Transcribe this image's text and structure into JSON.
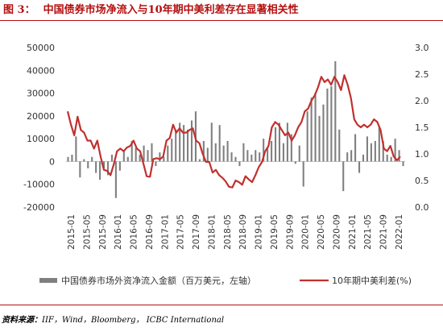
{
  "header": {
    "figure_label": "图 3：",
    "title": "中国债券市场净流入与10年期中美利差存在显著相关性"
  },
  "footer": {
    "source_label": "资料来源：",
    "source_text": "IIF，Wind，Bloomberg，  ICBC International"
  },
  "colors": {
    "title": "#b40f0f",
    "bars": "#7f7f7f",
    "line": "#c0312f",
    "axis": "#bfbfbf"
  },
  "chart_data": {
    "type": "bar+line",
    "title": "",
    "y_left": {
      "min": -20000,
      "max": 50000,
      "ticks": [
        -20000,
        -10000,
        0,
        10000,
        20000,
        30000,
        40000,
        50000
      ]
    },
    "y_right": {
      "min": 0.0,
      "max": 3.0,
      "ticks": [
        "0.0",
        "0.5",
        "1.0",
        "1.5",
        "2.0",
        "2.5",
        "3.0"
      ]
    },
    "x_labels": [
      "2015-01",
      "2015-05",
      "2015-09",
      "2016-01",
      "2016-05",
      "2016-09",
      "2017-01",
      "2017-05",
      "2017-09",
      "2018-01",
      "2018-05",
      "2018-09",
      "2019-01",
      "2019-05",
      "2019-09",
      "2020-01",
      "2020-05",
      "2020-09",
      "2021-01",
      "2021-05",
      "2021-09",
      "2022-01"
    ],
    "series": [
      {
        "name": "中国债券市场外资净流入金额（百万美元，左轴）",
        "axis": "left",
        "kind": "bar",
        "values": [
          2000,
          3000,
          11000,
          -7000,
          1000,
          -3000,
          2000,
          -5000,
          -8000,
          -3000,
          -6000,
          3000,
          -16000,
          -4000,
          5000,
          2000,
          9000,
          6000,
          3000,
          7000,
          5000,
          8000,
          -2000,
          4000,
          2000,
          7000,
          10000,
          14000,
          17000,
          16000,
          14000,
          18000,
          22000,
          1000,
          9000,
          6000,
          17000,
          8000,
          16000,
          7000,
          9000,
          4000,
          2000,
          -2000,
          8000,
          5000,
          3000,
          5000,
          4000,
          10000,
          6000,
          9000,
          15000,
          17000,
          8000,
          17000,
          12000,
          -1000,
          7000,
          -11000,
          22000,
          28000,
          30000,
          20000,
          25000,
          32000,
          33000,
          44000,
          14000,
          -13000,
          4000,
          5000,
          12000,
          -5000,
          3000,
          11000,
          8000,
          9000,
          15000,
          9000,
          3000,
          2000,
          10000,
          5000,
          -2000
        ]
      },
      {
        "name": "10年期中美利差(%)",
        "axis": "right",
        "kind": "line",
        "values": [
          1.8,
          1.55,
          1.35,
          1.7,
          1.45,
          1.4,
          1.25,
          1.25,
          1.1,
          1.25,
          0.95,
          0.7,
          0.68,
          0.6,
          0.8,
          1.05,
          1.1,
          1.05,
          1.12,
          1.15,
          1.25,
          1.1,
          1.05,
          0.82,
          0.58,
          0.57,
          0.9,
          0.92,
          0.9,
          0.95,
          1.25,
          1.3,
          1.55,
          1.4,
          1.48,
          1.4,
          1.4,
          1.45,
          1.48,
          1.25,
          1.2,
          1.0,
          0.85,
          0.85,
          0.65,
          0.7,
          0.6,
          0.55,
          0.48,
          0.38,
          0.37,
          0.5,
          0.47,
          0.42,
          0.58,
          0.52,
          0.47,
          0.6,
          0.75,
          0.85,
          1.05,
          1.15,
          1.5,
          1.6,
          1.55,
          1.45,
          1.35,
          1.4,
          1.25,
          1.35,
          1.5,
          1.6,
          1.8,
          1.85,
          2.0,
          2.1,
          2.25,
          2.45,
          2.35,
          2.4,
          2.3,
          2.45,
          2.35,
          2.2,
          2.48,
          2.3,
          2.05,
          1.65,
          1.55,
          1.5,
          1.55,
          1.5,
          1.55,
          1.65,
          1.6,
          1.45,
          1.1,
          1.05,
          1.15,
          0.95,
          0.88,
          0.95
        ]
      }
    ],
    "legend_position": "bottom"
  }
}
